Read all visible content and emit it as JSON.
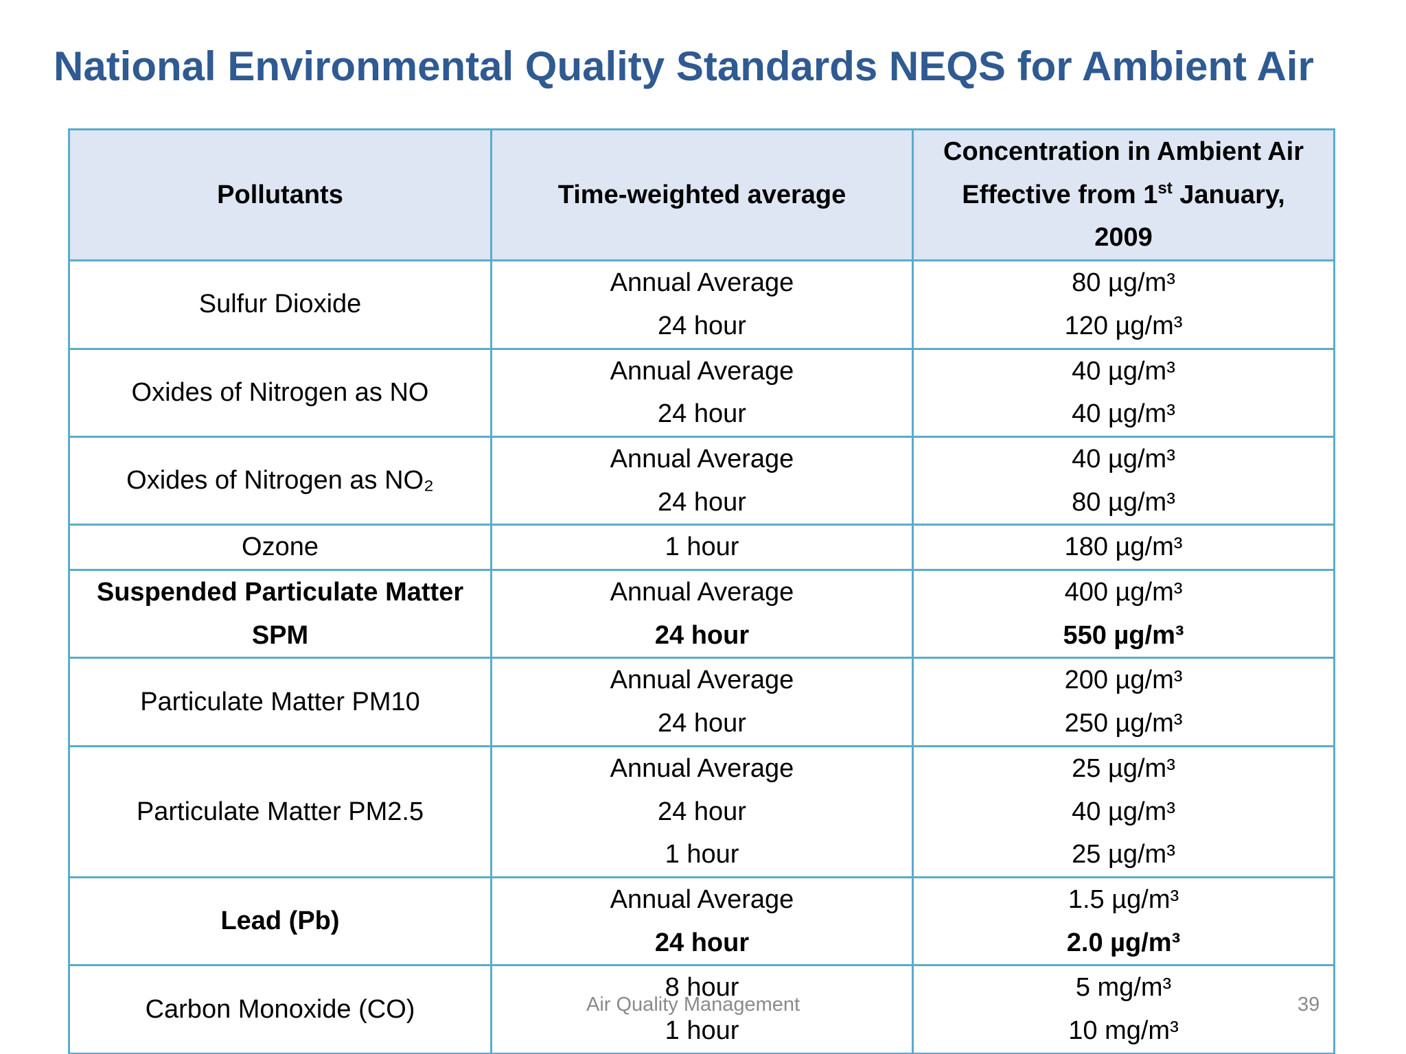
{
  "title": "National Environmental Quality Standards NEQS for Ambient Air",
  "table": {
    "header": [
      "Pollutants",
      "Time-weighted average",
      [
        "Concentration in Ambient Air",
        [
          "Effective from 1",
          "st",
          " January,"
        ],
        "2009"
      ]
    ],
    "rows": [
      {
        "pollutant": "Sulfur Dioxide",
        "averages": [
          "Annual Average",
          "24 hour"
        ],
        "concentrations": [
          "80 µg/m³",
          "120 µg/m³"
        ]
      },
      {
        "pollutant": "Oxides of Nitrogen as NO",
        "averages": [
          "Annual Average",
          "24 hour"
        ],
        "concentrations": [
          "40 µg/m³",
          "40 µg/m³"
        ]
      },
      {
        "pollutant": "Oxides of Nitrogen as NO₂",
        "averages": [
          "Annual Average",
          "24 hour"
        ],
        "concentrations": [
          "40 µg/m³",
          "80 µg/m³"
        ]
      },
      {
        "pollutant": "Ozone",
        "averages": [
          "1 hour"
        ],
        "concentrations": [
          "180 µg/m³"
        ]
      },
      {
        "pollutant": [
          "Suspended Particulate Matter",
          "SPM"
        ],
        "averages": [
          "Annual Average",
          "24 hour"
        ],
        "concentrations": [
          "400 µg/m³",
          "550 µg/m³"
        ]
      },
      {
        "pollutant": "Particulate Matter PM10",
        "averages": [
          "Annual Average",
          "24 hour"
        ],
        "concentrations": [
          "200 µg/m³",
          "250 µg/m³"
        ]
      },
      {
        "pollutant": "Particulate Matter PM2.5",
        "averages": [
          "Annual Average",
          "24 hour",
          "1 hour"
        ],
        "concentrations": [
          "25 µg/m³",
          "40 µg/m³",
          "25 µg/m³"
        ]
      },
      {
        "pollutant": "Lead (Pb)",
        "averages": [
          "Annual Average",
          "24 hour"
        ],
        "concentrations": [
          "1.5 µg/m³",
          "2.0 µg/m³"
        ]
      },
      {
        "pollutant": "Carbon Monoxide (CO)",
        "averages": [
          "8 hour",
          "1 hour"
        ],
        "concentrations": [
          "5 mg/m³",
          "10 mg/m³"
        ]
      }
    ]
  },
  "footer": {
    "text": "Air Quality Management",
    "page": "39"
  }
}
